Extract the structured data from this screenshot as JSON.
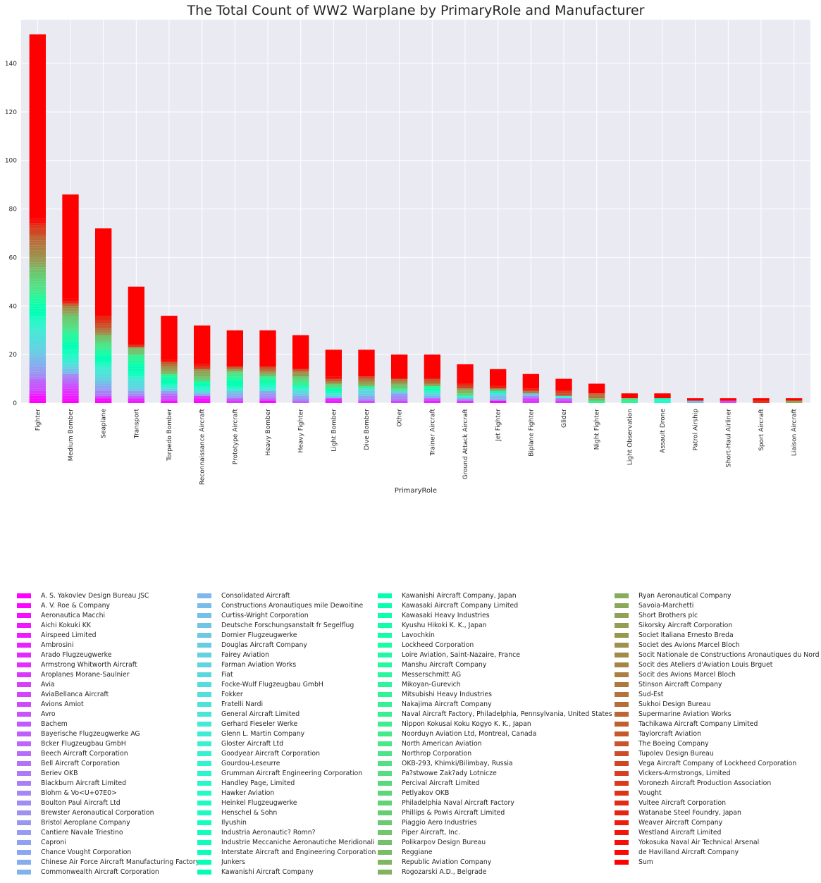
{
  "chart_data": {
    "type": "bar",
    "stacked": true,
    "title": "The Total Count of WW2 Warplane by PrimaryRole and Manufacturer",
    "xlabel": "PrimaryRole",
    "ylabel": "",
    "ylim": [
      0,
      158
    ],
    "yticks": [
      0,
      20,
      40,
      60,
      80,
      100,
      120,
      140
    ],
    "grid": true,
    "legend_position": "bottom",
    "colormap": "rainbow",
    "categories": [
      "Fighter",
      "Medium Bomber",
      "Seaplane",
      "Transport",
      "Torpedo Bomber",
      "Reconnaissance Aircraft",
      "Prototype Aircraft",
      "Heavy Bomber",
      "Heavy Fighter",
      "Light Bomber",
      "Dive Bomber",
      "Other",
      "Trainer Aircraft",
      "Ground Attack Aircraft",
      "Jet Fighter",
      "Biplane Fighter",
      "Glider",
      "Night Fighter",
      "Light Observation",
      "Assault Drone",
      "Patrol Airship",
      "Short-Haul Airliner",
      "Sport Aircraft",
      "Liaison Aircraft"
    ],
    "totals": [
      152,
      86,
      72,
      48,
      36,
      32,
      30,
      30,
      28,
      22,
      22,
      20,
      20,
      16,
      14,
      12,
      10,
      8,
      4,
      4,
      2,
      2,
      2,
      2
    ],
    "sum_series_name": "Sum",
    "legend": [
      "A. S. Yakovlev Design Bureau JSC",
      "A. V. Roe & Company",
      "Aeronautica Macchi",
      "Aichi Kokuki KK",
      "Airspeed Limited",
      "Ambrosini",
      "Arado Flugzeugwerke",
      "Armstrong Whitworth Aircraft",
      "Aroplanes Morane-Saulnier",
      "Avia",
      "AviaBellanca Aircraft",
      "Avions Amiot",
      "Avro",
      "Bachem",
      "Bayerische Flugzeugwerke AG",
      "Bcker Flugzeugbau GmbH",
      "Beech Aircraft Corporation",
      "Bell Aircraft Corporation",
      "Beriev OKB",
      "Blackburn Aircraft Limited",
      "Blohm & Vo<U+07E0>",
      "Boulton Paul Aircraft Ltd",
      "Brewster Aeronautical Corporation",
      "Bristol Aeroplane Company",
      "Cantiere Navale Triestino",
      "Caproni",
      "Chance Vought Corporation",
      "Chinese Air Force Aircraft Manufacturing Factory",
      "Commonwealth Aircraft Corporation",
      "Consolidated Aircraft",
      "Constructions Aronautiques mile Dewoitine",
      "Curtiss-Wright Corporation",
      "Deutsche Forschungsanstalt fr Segelflug",
      "Dornier Flugzeugwerke",
      "Douglas Aircraft Company",
      "Fairey Aviation",
      "Farman Aviation Works",
      "Fiat",
      "Focke-Wulf Flugzeugbau GmbH",
      "Fokker",
      "Fratelli Nardi",
      "General Aircraft Limited",
      "Gerhard Fieseler Werke",
      "Glenn L. Martin Company",
      "Gloster Aircraft Ltd",
      "Goodyear Aircraft Corporation",
      "Gourdou-Leseurre",
      "Grumman Aircraft Engineering Corporation",
      "Handley Page, Limited",
      "Hawker Aviation",
      "Heinkel Flugzeugwerke",
      "Henschel & Sohn",
      "Ilyushin",
      "Industria Aeronautic? Romn?",
      "Industrie Meccaniche Aeronautiche Meridionali",
      "Interstate Aircraft and Engineering Corporation",
      "Junkers",
      "Kawanishi Aircraft Company",
      "Kawanishi Aircraft Company, Japan",
      "Kawasaki Aircraft Company Limited",
      "Kawasaki Heavy Industries",
      "Kyushu Hikoki K. K., Japan",
      "Lavochkin",
      "Lockheed Corporation",
      "Loire Aviation, Saint-Nazaire, France",
      "Manshu Aircraft Company",
      "Messerschmitt AG",
      "Mikoyan-Gurevich",
      "Mitsubishi Heavy Industries",
      "Nakajima Aircraft Company",
      "Naval Aircraft Factory, Philadelphia, Pennsylvania, United States",
      "Nippon Kokusai Koku Kogyo K. K., Japan",
      "Noorduyn Aviation Ltd, Montreal, Canada",
      "North American Aviation",
      "Northrop Corporation",
      "OKB-293, Khimki/Bilimbay, Russia",
      "Pa?stwowe Zak?ady Lotnicze",
      "Percival Aircraft Limited",
      "Petlyakov OKB",
      "Philadelphia Naval Aircraft Factory",
      "Phillips & Powis Aircraft Limited",
      "Piaggio Aero Industries",
      "Piper Aircraft, Inc.",
      "Polikarpov Design Bureau",
      "Reggiane",
      "Republic Aviation Company",
      "Rogozarski A.D., Belgrade",
      "Ryan Aeronautical Company",
      "Savoia-Marchetti",
      "Short Brothers plc",
      "Sikorsky Aircraft Corporation",
      "Societ Italiana Ernesto Breda",
      "Societ des Avions Marcel Bloch",
      "Socit Nationale de Constructions Aronautiques du Nord",
      "Socit des Ateliers d'Aviation Louis Brguet",
      "Socit des Avions Marcel Bloch",
      "Stinson Aircraft Company",
      "Sud-Est",
      "Sukhoi Design Bureau",
      "Supermarine Aviation Works",
      "Tachikawa Aircraft Company Limited",
      "Taylorcraft Aviation",
      "The Boeing Company",
      "Tupolev Design Bureau",
      "Vega Aircraft Company of Lockheed Corporation",
      "Vickers-Armstrongs, Limited",
      "Voronezh Aircraft Production Association",
      "Vought",
      "Vultee Aircraft Corporation",
      "Watanabe Steel Foundry, Japan",
      "Weaver Aircraft Company",
      "Westland Aircraft Limited",
      "Yokosuka Naval Air Technical Arsenal",
      "de Havilland Aircraft Company",
      "Sum"
    ]
  }
}
